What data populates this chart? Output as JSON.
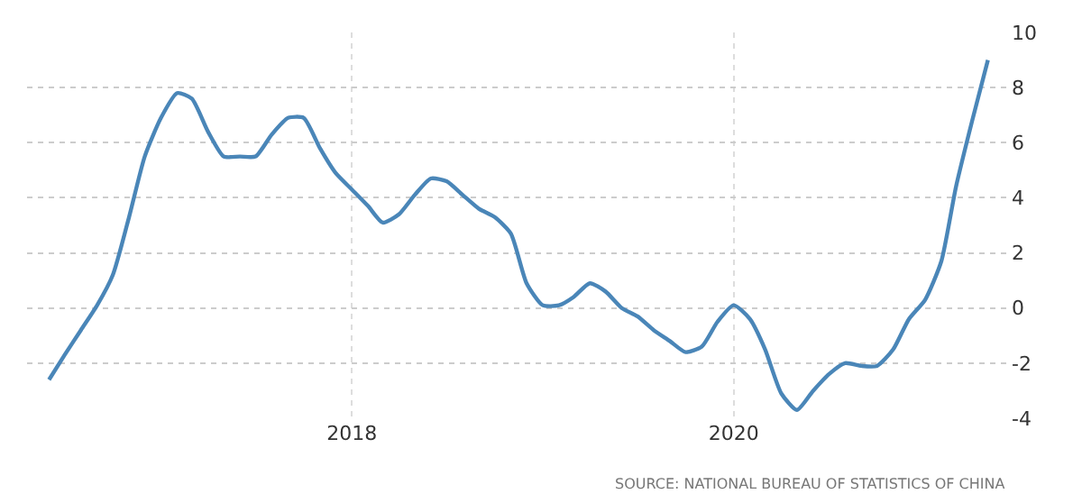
{
  "chart_data": {
    "type": "line",
    "x": [
      "2016-06",
      "2016-07",
      "2016-08",
      "2016-09",
      "2016-10",
      "2016-11",
      "2016-12",
      "2017-01",
      "2017-02",
      "2017-03",
      "2017-04",
      "2017-05",
      "2017-06",
      "2017-07",
      "2017-08",
      "2017-09",
      "2017-10",
      "2017-11",
      "2017-12",
      "2018-01",
      "2018-02",
      "2018-03",
      "2018-04",
      "2018-05",
      "2018-06",
      "2018-07",
      "2018-08",
      "2018-09",
      "2018-10",
      "2018-11",
      "2018-12",
      "2019-01",
      "2019-02",
      "2019-03",
      "2019-04",
      "2019-05",
      "2019-06",
      "2019-07",
      "2019-08",
      "2019-09",
      "2019-10",
      "2019-11",
      "2019-12",
      "2020-01",
      "2020-02",
      "2020-03",
      "2020-04",
      "2020-05",
      "2020-06",
      "2020-07",
      "2020-08",
      "2020-09",
      "2020-10",
      "2020-11",
      "2020-12",
      "2021-01",
      "2021-02",
      "2021-03",
      "2021-04",
      "2021-05"
    ],
    "series": [
      {
        "color": "#4a86b8",
        "values": [
          -2.6,
          -1.7,
          -0.8,
          0.1,
          1.2,
          3.3,
          5.5,
          6.9,
          7.8,
          7.6,
          6.4,
          5.5,
          5.5,
          5.5,
          6.3,
          6.9,
          6.9,
          5.8,
          4.9,
          4.3,
          3.7,
          3.1,
          3.4,
          4.1,
          4.7,
          4.6,
          4.1,
          3.6,
          3.3,
          2.7,
          0.9,
          0.1,
          0.1,
          0.4,
          0.9,
          0.6,
          0.0,
          -0.3,
          -0.8,
          -1.2,
          -1.6,
          -1.4,
          -0.5,
          0.1,
          -0.4,
          -1.5,
          -3.1,
          -3.7,
          -3.0,
          -2.4,
          -2.0,
          -2.1,
          -2.1,
          -1.5,
          -0.4,
          0.3,
          1.7,
          4.4,
          6.8,
          9.0
        ]
      }
    ],
    "xlim": [
      "2016-04-20",
      "2021-06-12"
    ],
    "xticks": [
      {
        "value": "2018",
        "label": "2018"
      },
      {
        "value": "2020",
        "label": "2020"
      }
    ],
    "ylim": [
      -4,
      10
    ],
    "yticks": [
      -4,
      -2,
      0,
      2,
      4,
      6,
      8,
      10
    ],
    "grid": true,
    "marker": "none",
    "line_style": "solid",
    "annotations": [
      "SOURCE: NATIONAL BUREAU OF STATISTICS OF CHINA"
    ]
  }
}
